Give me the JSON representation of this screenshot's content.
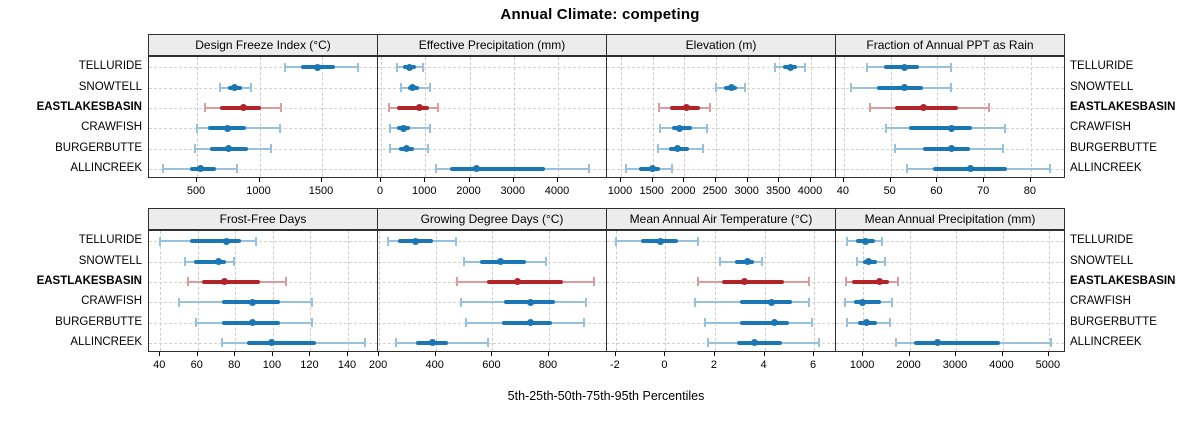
{
  "chart_data": {
    "type": "dotplot-interval",
    "title": "Annual Climate: competing",
    "xlabel": "5th-25th-50th-75th-95th Percentiles",
    "percentile_labels": [
      "5th",
      "25th",
      "50th",
      "75th",
      "95th"
    ],
    "sites_top_to_bottom": [
      "TELLURIDE",
      "SNOWTELL",
      "EASTLAKESBASIN",
      "CRAWFISH",
      "BURGERBUTTE",
      "ALLINCREEK"
    ],
    "highlight_site": "EASTLAKESBASIN",
    "legend": "none",
    "grid": "dashed",
    "panels": [
      {
        "title": "Design Freeze Index (°C)",
        "grid_pos": {
          "row": 0,
          "col": 0
        },
        "xlim": [
          116,
          1948
        ],
        "ticks": [
          500,
          1000,
          1500
        ],
        "values": {
          "TELLURIDE": [
            1200,
            1330,
            1460,
            1600,
            1790
          ],
          "SNOWTELL": [
            680,
            745,
            800,
            860,
            930
          ],
          "EASTLAKESBASIN": [
            560,
            680,
            870,
            1010,
            1170
          ],
          "CRAWFISH": [
            500,
            590,
            740,
            890,
            1160
          ],
          "BURGERBUTTE": [
            480,
            600,
            750,
            910,
            1090
          ],
          "ALLINCREEK": [
            230,
            440,
            530,
            650,
            820
          ]
        }
      },
      {
        "title": "Effective Precipitation (mm)",
        "grid_pos": {
          "row": 0,
          "col": 1
        },
        "xlim": [
          -68,
          5107
        ],
        "ticks": [
          0,
          1000,
          2000,
          3000,
          4000
        ],
        "values": {
          "TELLURIDE": [
            350,
            500,
            650,
            800,
            950
          ],
          "SNOWTELL": [
            450,
            600,
            720,
            850,
            1100
          ],
          "EASTLAKESBASIN": [
            180,
            350,
            860,
            1090,
            1280
          ],
          "CRAWFISH": [
            200,
            350,
            500,
            650,
            1100
          ],
          "BURGERBUTTE": [
            200,
            400,
            580,
            750,
            1050
          ],
          "ALLINCREEK": [
            1250,
            1550,
            2150,
            3700,
            4700
          ]
        }
      },
      {
        "title": "Elevation (m)",
        "grid_pos": {
          "row": 0,
          "col": 2
        },
        "xlim": [
          779,
          4395
        ],
        "ticks": [
          1000,
          1500,
          2000,
          2500,
          3000,
          3500,
          4000
        ],
        "values": {
          "TELLURIDE": [
            3430,
            3550,
            3680,
            3780,
            3900
          ],
          "SNOWTELL": [
            2500,
            2620,
            2740,
            2830,
            2950
          ],
          "EASTLAKESBASIN": [
            1600,
            1780,
            2030,
            2250,
            2400
          ],
          "CRAWFISH": [
            1620,
            1800,
            1920,
            2120,
            2350
          ],
          "BURGERBUTTE": [
            1580,
            1750,
            1890,
            2080,
            2300
          ],
          "ALLINCREEK": [
            1080,
            1280,
            1500,
            1620,
            1800
          ]
        }
      },
      {
        "title": "Fraction of Annual PPT as Rain",
        "grid_pos": {
          "row": 0,
          "col": 3
        },
        "xlim": [
          38.3,
          87.3
        ],
        "ticks": [
          40,
          50,
          60,
          70,
          80
        ],
        "values": {
          "TELLURIDE": [
            45,
            48.5,
            53,
            56,
            63
          ],
          "SNOWTELL": [
            41.5,
            47,
            53,
            57,
            63
          ],
          "EASTLAKESBASIN": [
            45.5,
            51,
            57,
            64.5,
            71
          ],
          "CRAWFISH": [
            49,
            54,
            63,
            67.5,
            74.5
          ],
          "BURGERBUTTE": [
            51,
            57,
            63,
            67,
            74
          ],
          "ALLINCREEK": [
            53.5,
            59,
            67,
            75,
            84
          ]
        }
      },
      {
        "title": "Frost-Free Days",
        "grid_pos": {
          "row": 1,
          "col": 0
        },
        "xlim": [
          34,
          156
        ],
        "ticks": [
          40,
          60,
          80,
          100,
          120,
          140
        ],
        "values": {
          "TELLURIDE": [
            40,
            56,
            75,
            83,
            91
          ],
          "SNOWTELL": [
            53,
            58,
            71,
            75,
            79
          ],
          "EASTLAKESBASIN": [
            55,
            62,
            74,
            93,
            107
          ],
          "CRAWFISH": [
            50,
            73,
            89,
            104,
            121
          ],
          "BURGERBUTTE": [
            59,
            73,
            89,
            104,
            121
          ],
          "ALLINCREEK": [
            73,
            86,
            99,
            123,
            149
          ]
        }
      },
      {
        "title": "Growing Degree Days (°C)",
        "grid_pos": {
          "row": 1,
          "col": 1
        },
        "xlim": [
          196,
          1005
        ],
        "ticks": [
          200,
          400,
          600,
          800
        ],
        "values": {
          "TELLURIDE": [
            230,
            265,
            330,
            390,
            470
          ],
          "SNOWTELL": [
            500,
            555,
            630,
            720,
            790
          ],
          "EASTLAKESBASIN": [
            475,
            580,
            690,
            850,
            960
          ],
          "CRAWFISH": [
            490,
            640,
            735,
            820,
            930
          ],
          "BURGERBUTTE": [
            505,
            635,
            735,
            810,
            925
          ],
          "ALLINCREEK": [
            260,
            330,
            390,
            445,
            585
          ]
        }
      },
      {
        "title": "Mean Annual Air Temperature (°C)",
        "grid_pos": {
          "row": 1,
          "col": 2
        },
        "xlim": [
          -2.36,
          6.89
        ],
        "ticks": [
          -2,
          0,
          2,
          4,
          6
        ],
        "values": {
          "TELLURIDE": [
            -2.0,
            -1.0,
            -0.2,
            0.5,
            1.3
          ],
          "SNOWTELL": [
            2.2,
            2.8,
            3.3,
            3.6,
            3.9
          ],
          "EASTLAKESBASIN": [
            1.3,
            2.3,
            3.2,
            4.8,
            5.8
          ],
          "CRAWFISH": [
            1.2,
            3.0,
            4.3,
            5.1,
            5.8
          ],
          "BURGERBUTTE": [
            1.6,
            3.0,
            4.4,
            5.0,
            5.9
          ],
          "ALLINCREEK": [
            1.7,
            2.9,
            3.6,
            4.7,
            6.2
          ]
        }
      },
      {
        "title": "Mean Annual Precipitation (mm)",
        "grid_pos": {
          "row": 1,
          "col": 3
        },
        "xlim": [
          417,
          5346
        ],
        "ticks": [
          1000,
          2000,
          3000,
          4000,
          5000
        ],
        "values": {
          "TELLURIDE": [
            650,
            850,
            1050,
            1250,
            1400
          ],
          "SNOWTELL": [
            870,
            1000,
            1120,
            1300,
            1480
          ],
          "EASTLAKESBASIN": [
            640,
            760,
            1350,
            1560,
            1760
          ],
          "CRAWFISH": [
            620,
            800,
            980,
            1380,
            1620
          ],
          "BURGERBUTTE": [
            650,
            880,
            1080,
            1300,
            1570
          ],
          "ALLINCREEK": [
            1700,
            2100,
            2600,
            3950,
            5050
          ]
        }
      }
    ]
  },
  "colors": {
    "series": "#1a76b4",
    "series_light": "#98c1dd",
    "highlight": "#b22428",
    "highlight_light": "#dc9c9e",
    "strip_bg": "#ececec",
    "panel_border": "#2f2f2f",
    "grid": "#cccccc"
  }
}
